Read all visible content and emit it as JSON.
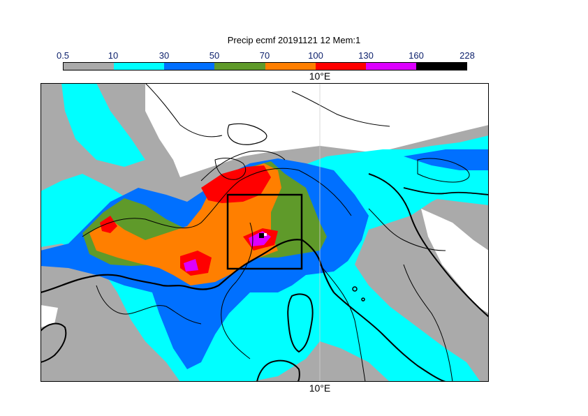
{
  "title": "Precip ecmf 20191121 12 Mem:1",
  "colorbar": {
    "labels": [
      "0.5",
      "10",
      "30",
      "50",
      "70",
      "100",
      "130",
      "160",
      "228"
    ],
    "colors": [
      "#aaaaaa",
      "#00ffff",
      "#0070ff",
      "#5f9a2a",
      "#ff7f00",
      "#ff0000",
      "#dd00ff",
      "#000000"
    ]
  },
  "map": {
    "top_label": "10°E",
    "bottom_label": "10°E",
    "land_color": "#ffffff",
    "sea_background_color": "#aaaaaa",
    "box_color": "#000000"
  }
}
